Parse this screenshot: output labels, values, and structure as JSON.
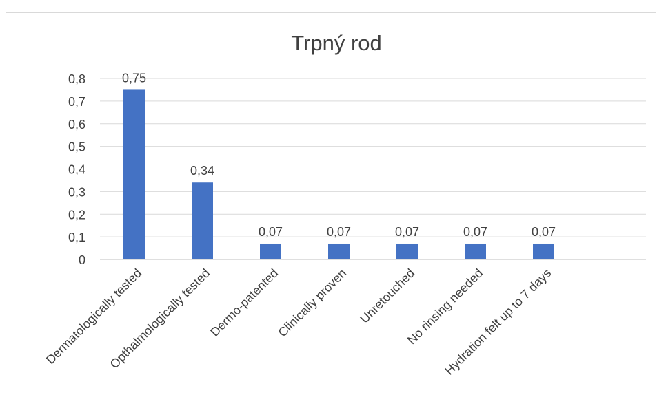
{
  "chart_data": {
    "type": "bar",
    "title": "Trpný rod",
    "categories": [
      "Dermatologically tested",
      "Opthalmologically tested",
      "Dermo-patented",
      "Clinically proven",
      "Unretouched",
      "No rinsing needed",
      "Hydration felt up to 7 days"
    ],
    "values": [
      0.75,
      0.34,
      0.07,
      0.07,
      0.07,
      0.07,
      0.07
    ],
    "value_labels": [
      "0,75",
      "0,34",
      "0,07",
      "0,07",
      "0,07",
      "0,07",
      "0,07"
    ],
    "ylim": [
      0,
      0.8
    ],
    "yticks": [
      0,
      0.1,
      0.2,
      0.3,
      0.4,
      0.5,
      0.6,
      0.7,
      0.8
    ],
    "ytick_labels": [
      "0",
      "0,1",
      "0,2",
      "0,3",
      "0,4",
      "0,5",
      "0,6",
      "0,7",
      "0,8"
    ],
    "grid": true,
    "bar_color": "#4472c4"
  }
}
